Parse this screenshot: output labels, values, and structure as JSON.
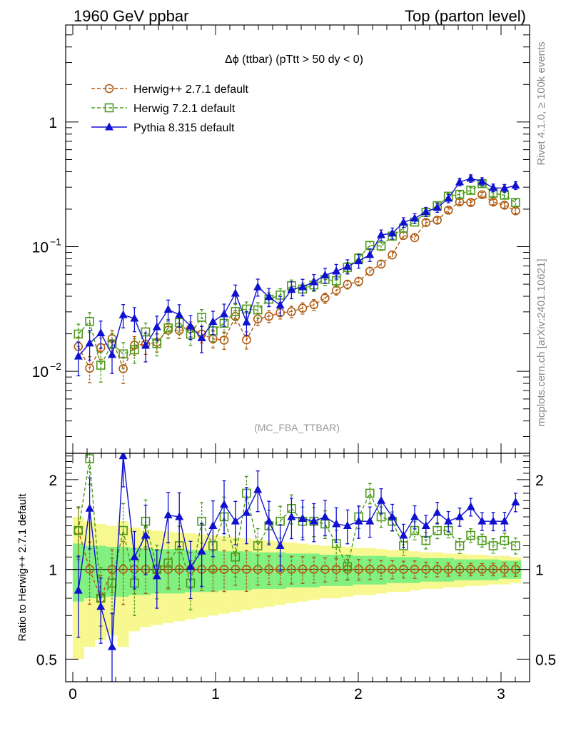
{
  "header": {
    "left": "1960 GeV ppbar",
    "right": "Top (parton level)"
  },
  "side_labels": {
    "rivet": "Rivet 4.1.0, ≥ 100k events",
    "mcplots": "mcplots.cern.ch [arXiv:2401.10621]"
  },
  "chart_data": {
    "type": "line",
    "title": "Δϕ (ttbar) (pTtt > 50 dy < 0)",
    "watermark": "(MC_FBA_TTBAR)",
    "xlabel": "",
    "ylabel": "",
    "ratio_ylabel": "Ratio to Herwig++ 2.7.1 default",
    "xlim": [
      -0.05,
      3.2
    ],
    "ylim": [
      0.0022,
      6.0
    ],
    "ylog": true,
    "ratio_ylim": [
      0.42,
      2.45
    ],
    "ratio_ylog": true,
    "x_tick_labels": [
      {
        "value": 0,
        "label": "0"
      },
      {
        "value": 1,
        "label": "1"
      },
      {
        "value": 2,
        "label": "2"
      },
      {
        "value": 3,
        "label": "3"
      }
    ],
    "y_tick_labels": [
      {
        "value": 1,
        "label": "1",
        "sup": ""
      },
      {
        "value": 0.1,
        "label": "10",
        "sup": "−1"
      },
      {
        "value": 0.01,
        "label": "10",
        "sup": "−2"
      }
    ],
    "ratio_tick_labels": [
      {
        "value": 2,
        "label": "2"
      },
      {
        "value": 1,
        "label": "1"
      },
      {
        "value": 0.5,
        "label": "0.5"
      }
    ],
    "legend_position": "top-left",
    "x": [
      0.039,
      0.118,
      0.196,
      0.275,
      0.353,
      0.432,
      0.51,
      0.589,
      0.668,
      0.746,
      0.825,
      0.903,
      0.982,
      1.06,
      1.139,
      1.217,
      1.296,
      1.374,
      1.453,
      1.532,
      1.61,
      1.689,
      1.767,
      1.846,
      1.924,
      2.003,
      2.081,
      2.16,
      2.238,
      2.317,
      2.395,
      2.474,
      2.553,
      2.631,
      2.71,
      2.788,
      2.867,
      2.945,
      3.024,
      3.102
    ],
    "series": [
      {
        "name": "Herwig++ 2.7.1 default",
        "color": "#b05a10",
        "marker": "circle",
        "dashed": true,
        "values": [
          0.0158,
          0.0106,
          0.0155,
          0.0183,
          0.0105,
          0.0162,
          0.0165,
          0.0171,
          0.0214,
          0.0213,
          0.0219,
          0.0199,
          0.0182,
          0.0178,
          0.0275,
          0.0179,
          0.0263,
          0.0276,
          0.0295,
          0.0301,
          0.0321,
          0.0342,
          0.0387,
          0.0447,
          0.0498,
          0.0526,
          0.0635,
          0.0726,
          0.0859,
          0.1231,
          0.1181,
          0.1562,
          0.1632,
          0.1963,
          0.2283,
          0.2259,
          0.2611,
          0.2278,
          0.2152,
          0.1938
        ],
        "errors": [
          0.003,
          0.0025,
          0.003,
          0.003,
          0.0025,
          0.0028,
          0.0028,
          0.0028,
          0.003,
          0.003,
          0.003,
          0.003,
          0.0028,
          0.0028,
          0.0032,
          0.0028,
          0.003,
          0.003,
          0.0032,
          0.0032,
          0.0033,
          0.0034,
          0.0036,
          0.0038,
          0.004,
          0.0042,
          0.0048,
          0.0052,
          0.006,
          0.008,
          0.008,
          0.009,
          0.009,
          0.01,
          0.011,
          0.011,
          0.012,
          0.011,
          0.011,
          0.01
        ],
        "ratio": [
          1.35,
          1.0,
          0.8,
          1.0,
          1.0,
          1.0,
          1.0,
          1.0,
          1.0,
          1.0,
          1.0,
          1.0,
          1.0,
          1.0,
          1.0,
          1.0,
          1.0,
          1.0,
          1.0,
          1.0,
          1.0,
          1.0,
          1.0,
          1.0,
          1.0,
          1.0,
          1.0,
          1.0,
          1.0,
          1.0,
          1.0,
          1.0,
          1.0,
          1.0,
          1.0,
          1.0,
          1.0,
          1.0,
          1.0,
          1.0
        ]
      },
      {
        "name": "Herwig 7.2.1 default",
        "color": "#4c9a1a",
        "marker": "square",
        "dashed": true,
        "values": [
          0.0199,
          0.0251,
          0.0112,
          0.0166,
          0.0138,
          0.0149,
          0.0207,
          0.0167,
          0.0223,
          0.0246,
          0.0198,
          0.0271,
          0.0211,
          0.0243,
          0.0302,
          0.0316,
          0.0311,
          0.0379,
          0.0409,
          0.0486,
          0.0457,
          0.0493,
          0.0546,
          0.0532,
          0.0682,
          0.0809,
          0.1023,
          0.1013,
          0.1216,
          0.1409,
          0.1575,
          0.1887,
          0.2132,
          0.2539,
          0.2629,
          0.2834,
          0.3202,
          0.2681,
          0.2589,
          0.2258
        ],
        "errors": [
          0.004,
          0.0045,
          0.003,
          0.0035,
          0.0032,
          0.0033,
          0.0037,
          0.0034,
          0.0038,
          0.004,
          0.0037,
          0.0042,
          0.0038,
          0.004,
          0.0043,
          0.0044,
          0.0044,
          0.0048,
          0.005,
          0.0054,
          0.0053,
          0.0055,
          0.0058,
          0.0057,
          0.0064,
          0.007,
          0.008,
          0.008,
          0.009,
          0.01,
          0.011,
          0.012,
          0.013,
          0.014,
          0.015,
          0.015,
          0.016,
          0.015,
          0.015,
          0.014
        ],
        "ratio": [
          1.35,
          2.35,
          0.8,
          0.9,
          1.35,
          0.9,
          1.45,
          1.0,
          1.05,
          1.2,
          0.9,
          1.45,
          1.2,
          1.5,
          1.1,
          1.8,
          1.2,
          1.4,
          1.45,
          1.6,
          1.45,
          1.45,
          1.42,
          1.22,
          1.02,
          1.5,
          1.8,
          1.5,
          1.45,
          1.2,
          1.35,
          1.25,
          1.35,
          1.35,
          1.2,
          1.3,
          1.25,
          1.2,
          1.25,
          1.2
        ]
      },
      {
        "name": "Pythia 8.315 default",
        "color": "#1010d0",
        "marker": "triangle",
        "dashed": false,
        "values": [
          0.0132,
          0.0168,
          0.0203,
          0.0136,
          0.0283,
          0.0266,
          0.0161,
          0.0227,
          0.0313,
          0.0284,
          0.023,
          0.0185,
          0.025,
          0.0288,
          0.0422,
          0.0248,
          0.0475,
          0.0396,
          0.0339,
          0.0452,
          0.0475,
          0.0521,
          0.0589,
          0.0635,
          0.0694,
          0.0767,
          0.0861,
          0.1241,
          0.1281,
          0.1567,
          0.1688,
          0.1906,
          0.2056,
          0.2438,
          0.3301,
          0.3527,
          0.3339,
          0.2967,
          0.2943,
          0.3097
        ],
        "errors": [
          0.004,
          0.0045,
          0.005,
          0.004,
          0.006,
          0.0058,
          0.0042,
          0.005,
          0.006,
          0.0058,
          0.005,
          0.0044,
          0.0053,
          0.0058,
          0.007,
          0.0053,
          0.0074,
          0.0066,
          0.006,
          0.007,
          0.0072,
          0.0076,
          0.008,
          0.0085,
          0.009,
          0.0095,
          0.01,
          0.012,
          0.013,
          0.014,
          0.015,
          0.016,
          0.017,
          0.019,
          0.023,
          0.024,
          0.023,
          0.021,
          0.021,
          0.022
        ],
        "ratio": [
          0.85,
          1.6,
          0.75,
          0.55,
          2.4,
          1.1,
          1.3,
          0.95,
          1.52,
          1.5,
          1.02,
          1.15,
          1.4,
          1.65,
          1.45,
          1.55,
          1.85,
          1.45,
          1.2,
          1.5,
          1.48,
          1.45,
          1.5,
          1.42,
          1.4,
          1.45,
          1.45,
          1.7,
          1.5,
          1.3,
          1.5,
          1.4,
          1.55,
          1.45,
          1.5,
          1.62,
          1.45,
          1.45,
          1.45,
          1.68
        ]
      }
    ],
    "bands": {
      "inner_half_width": [
        0.22,
        0.2,
        0.2,
        0.19,
        0.19,
        0.18,
        0.18,
        0.17,
        0.17,
        0.17,
        0.16,
        0.16,
        0.16,
        0.15,
        0.15,
        0.15,
        0.14,
        0.14,
        0.14,
        0.13,
        0.13,
        0.13,
        0.12,
        0.12,
        0.12,
        0.11,
        0.11,
        0.11,
        0.1,
        0.1,
        0.1,
        0.09,
        0.09,
        0.09,
        0.08,
        0.08,
        0.08,
        0.08,
        0.07,
        0.07
      ],
      "outer_half_width": [
        0.5,
        0.45,
        0.42,
        0.4,
        0.45,
        0.38,
        0.36,
        0.35,
        0.34,
        0.33,
        0.32,
        0.31,
        0.3,
        0.29,
        0.28,
        0.27,
        0.26,
        0.25,
        0.24,
        0.23,
        0.22,
        0.21,
        0.2,
        0.2,
        0.19,
        0.18,
        0.18,
        0.17,
        0.16,
        0.16,
        0.15,
        0.14,
        0.14,
        0.13,
        0.13,
        0.12,
        0.12,
        0.11,
        0.11,
        0.1
      ],
      "inner_color": "#80f080",
      "outer_color": "#f8f890"
    }
  }
}
